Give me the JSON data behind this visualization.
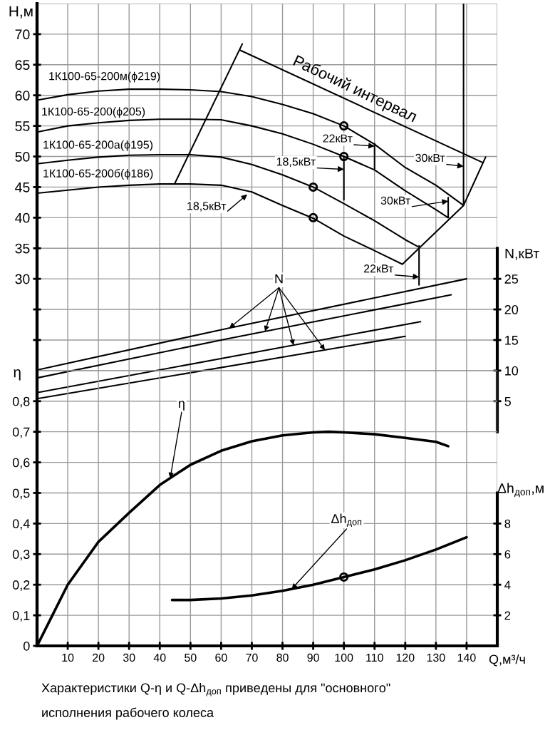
{
  "chart_data": [
    {
      "type": "line",
      "ylabel": "H,м",
      "y2label": "N,кВт",
      "xlim": [
        0,
        150
      ],
      "xticks": [
        10,
        20,
        30,
        40,
        50,
        60,
        70,
        80,
        90,
        100,
        110,
        120,
        130,
        140
      ],
      "tick_labels": "y",
      "ylim": [
        -30,
        75
      ],
      "yticks": [
        {
          "value": 20,
          "label": null
        },
        {
          "value": 25,
          "label": null
        },
        30,
        35,
        40,
        45,
        50,
        55,
        60,
        65,
        70
      ],
      "y2lim": [
        -35,
        70
      ],
      "y2ticks": [
        5,
        10,
        15,
        20,
        25
      ],
      "grid": true,
      "series": [
        {
          "name": "1К100-65-200м(ϕ219)",
          "color": "#000000",
          "x": [
            0,
            10,
            20,
            30,
            40,
            50,
            60,
            70,
            80,
            90,
            100,
            110,
            120,
            130,
            139
          ],
          "values": [
            59.2,
            60.1,
            60.7,
            61.0,
            61.0,
            60.9,
            60.6,
            59.8,
            58.5,
            57.0,
            55.0,
            52.0,
            48.2,
            45.3,
            42.0
          ]
        },
        {
          "name": "1К100-65-200(ϕ205)",
          "color": "#000000",
          "x": [
            0,
            10,
            20,
            30,
            40,
            50,
            60,
            70,
            80,
            90,
            100,
            110,
            120,
            130,
            134
          ],
          "values": [
            54.0,
            55.0,
            55.5,
            55.9,
            56.1,
            56.1,
            56.0,
            55.0,
            53.7,
            52.0,
            50.0,
            47.8,
            44.4,
            41.3,
            40.0
          ]
        },
        {
          "name": "1К100-65-200а(ϕ195)",
          "color": "#000000",
          "x": [
            0,
            10,
            20,
            30,
            40,
            50,
            60,
            70,
            80,
            90,
            100,
            110,
            120,
            124
          ],
          "values": [
            48.8,
            49.4,
            49.9,
            50.2,
            50.3,
            50.3,
            49.9,
            48.7,
            47.0,
            45.0,
            42.3,
            39.5,
            36.4,
            35.3
          ]
        },
        {
          "name": "1К100-65-200б(ϕ186)",
          "color": "#000000",
          "x": [
            0,
            10,
            20,
            30,
            40,
            50,
            60,
            70,
            80,
            90,
            100,
            110,
            119
          ],
          "values": [
            44.0,
            44.5,
            45.0,
            45.3,
            45.5,
            45.5,
            45.3,
            44.2,
            42.0,
            39.9,
            37.0,
            34.6,
            32.4
          ]
        },
        {
          "type": "scatter",
          "marker": "circle",
          "color": "#000000",
          "x": [
            100,
            100,
            90,
            90
          ],
          "values": [
            55,
            50,
            45,
            40
          ]
        },
        {
          "color": "#000000",
          "x": [
            110,
            110
          ],
          "values": [
            52.1,
            48.0
          ]
        },
        {
          "color": "#000000",
          "x": [
            100,
            100
          ],
          "values": [
            50.0,
            42.9
          ]
        },
        {
          "color": "#000000",
          "x": [
            139,
            139
          ],
          "values": [
            75,
            42.0
          ]
        },
        {
          "color": "#000000",
          "x": [
            134,
            134
          ],
          "values": [
            43.3,
            40.0
          ]
        },
        {
          "color": "#000000",
          "x": [
            124.5,
            124.5
          ],
          "values": [
            35.4,
            29.0
          ]
        },
        {
          "color": "#000000",
          "x": [
            44.8,
            66.9
          ],
          "values": [
            45.5,
            68.4
          ]
        },
        {
          "color": "#000000",
          "x": [
            119.1,
            139,
            146.2
          ],
          "values": [
            32.4,
            42.0,
            49.9
          ]
        },
        {
          "color": "#000000",
          "x": [
            66.1,
            145.3
          ],
          "values": [
            67.4,
            49.0
          ]
        },
        {
          "name": "N",
          "axis": "y2",
          "color": "#000000",
          "x": [
            0,
            62,
            140
          ],
          "values": [
            10.1,
            16.9,
            25.0
          ]
        },
        {
          "axis": "y2",
          "color": "#000000",
          "x": [
            0,
            62,
            135
          ],
          "values": [
            8.8,
            15.2,
            22.4
          ]
        },
        {
          "axis": "y2",
          "color": "#000000",
          "x": [
            0,
            125
          ],
          "values": [
            6.4,
            18.0
          ]
        },
        {
          "axis": "y2",
          "color": "#000000",
          "x": [
            0,
            120
          ],
          "values": [
            5.4,
            15.6
          ]
        }
      ],
      "annotations": [
        "Рабочий интервал",
        {
          "text": "22кВт",
          "x": 110,
          "y": 51.7
        },
        {
          "text": "18,5кВт",
          "x": 100,
          "y": 47.9
        },
        {
          "text": "30кВт",
          "x": 139,
          "y": 48.4
        },
        {
          "text": "30кВт",
          "x": 134,
          "y": 42.7
        },
        {
          "text": "22кВт",
          "x": 124.5,
          "y": 30.3
        },
        {
          "text": "18,5кВт",
          "x": 68.5,
          "y": 43.8
        }
      ]
    },
    {
      "type": "line",
      "xlabel": "Q,м³/ч",
      "ylabel": "η",
      "y2label": "Δh$_{доп}$,м",
      "xlim": [
        0,
        150
      ],
      "xticks": [
        10,
        20,
        30,
        40,
        50,
        60,
        70,
        80,
        90,
        100,
        110,
        120,
        130,
        140
      ],
      "ylim": [
        0,
        2.1
      ],
      "yticks": [
        0,
        {
          "value": 0.1,
          "label": "0,1"
        },
        {
          "value": 0.2,
          "label": "0,2"
        },
        {
          "value": 0.3,
          "label": "0,3"
        },
        {
          "value": 0.4,
          "label": "0,4"
        },
        {
          "value": 0.5,
          "label": "0,5"
        },
        {
          "value": 0.6,
          "label": "0,6"
        },
        {
          "value": 0.7,
          "label": "0,7"
        },
        {
          "value": 0.8,
          "label": "0,8"
        }
      ],
      "y2lim": [
        0,
        42
      ],
      "y2ticks": [
        2,
        4,
        6,
        8
      ],
      "grid": true,
      "series": [
        {
          "name": "η",
          "color": "#000000",
          "x": [
            0,
            5,
            10,
            20,
            30,
            40,
            50,
            60,
            70,
            80,
            90,
            95,
            100,
            110,
            120,
            130,
            134
          ],
          "values": [
            0,
            0.1,
            0.2,
            0.34,
            0.435,
            0.526,
            0.592,
            0.638,
            0.669,
            0.688,
            0.698,
            0.7,
            0.698,
            0.692,
            0.68,
            0.667,
            0.653
          ]
        },
        {
          "name": "Δh$_{доп}$",
          "axis": "y2",
          "color": "#000000",
          "x": [
            44,
            50,
            60,
            70,
            80,
            90,
            100,
            110,
            120,
            130,
            140
          ],
          "values": [
            3.0,
            3.0,
            3.1,
            3.3,
            3.6,
            4.0,
            4.5,
            5.0,
            5.6,
            6.3,
            7.1
          ]
        },
        {
          "type": "scatter",
          "marker": "circle",
          "axis": "y2",
          "color": "#000000",
          "x": [
            100
          ],
          "values": [
            4.5
          ]
        }
      ],
      "annotations": [
        "Характеристики Q-η и Q-Δh$_{доп}$ приведены для \"основного\"\nисполнения рабочего колеса"
      ]
    }
  ]
}
